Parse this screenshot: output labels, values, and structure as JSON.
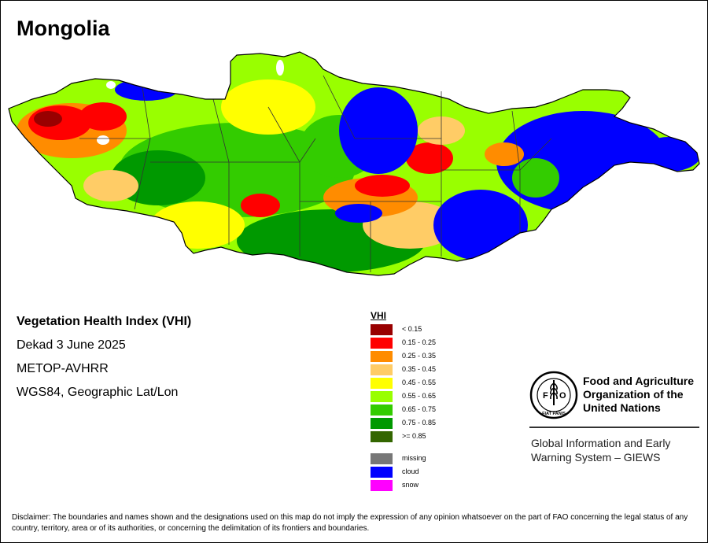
{
  "map": {
    "title": "Mongolia",
    "info": {
      "index_name": "Vegetation Health Index (VHI)",
      "period": "Dekad 3 June 2025",
      "sensor": "METOP-AVHRR",
      "projection": "WGS84, Geographic Lat/Lon"
    },
    "legend": {
      "title": "VHI",
      "classes": [
        {
          "label": "< 0.15",
          "color": "#990000"
        },
        {
          "label": "0.15 - 0.25",
          "color": "#ff0000"
        },
        {
          "label": "0.25 - 0.35",
          "color": "#ff8c00"
        },
        {
          "label": "0.35 - 0.45",
          "color": "#ffcc66"
        },
        {
          "label": "0.45 - 0.55",
          "color": "#ffff00"
        },
        {
          "label": "0.55 - 0.65",
          "color": "#99ff00"
        },
        {
          "label": "0.65 - 0.75",
          "color": "#33cc00"
        },
        {
          "label": "0.75 - 0.85",
          "color": "#009900"
        },
        {
          "label": ">= 0.85",
          "color": "#336600"
        }
      ],
      "special": [
        {
          "label": "missing",
          "color": "#777777"
        },
        {
          "label": "cloud",
          "color": "#0000ff"
        },
        {
          "label": "snow",
          "color": "#ff00ff"
        }
      ]
    },
    "organization": {
      "logo_text": "FAO",
      "logo_motto": "FIAT PANIS",
      "name": "Food and Agriculture Organization of the United Nations",
      "system": "Global Information and Early Warning System – GIEWS"
    },
    "disclaimer": "Disclaimer: The boundaries and names shown and the designations used on this map do not imply the expression of any opinion whatsoever on the part of FAO concerning the legal status of any country, territory, area or of its authorities, or concerning the delimitation of its frontiers and boundaries."
  }
}
